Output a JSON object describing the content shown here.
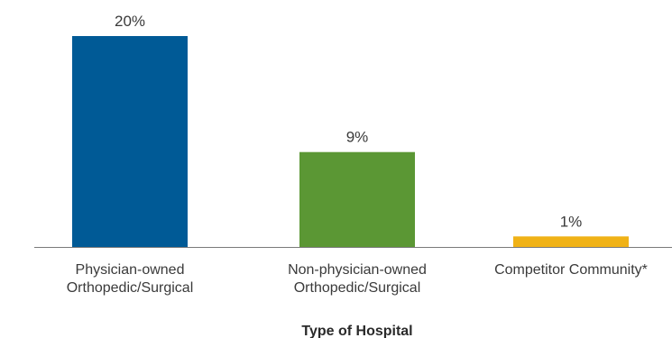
{
  "chart_data": {
    "type": "bar",
    "title": "",
    "xlabel": "Type of Hospital",
    "ylabel": "",
    "ylim": [
      0,
      20
    ],
    "grid": false,
    "legend": "none",
    "categories": [
      [
        "Physician-owned",
        "Orthopedic/Surgical"
      ],
      [
        "Non-physician-owned",
        "Orthopedic/Surgical"
      ],
      [
        "Competitor Community*"
      ]
    ],
    "values": [
      20,
      9,
      1
    ],
    "value_labels": [
      "20%",
      "9%",
      "1%"
    ],
    "colors": [
      "#005a96",
      "#5b9734",
      "#f0b216"
    ],
    "axis_color": "#7a7a7a"
  }
}
